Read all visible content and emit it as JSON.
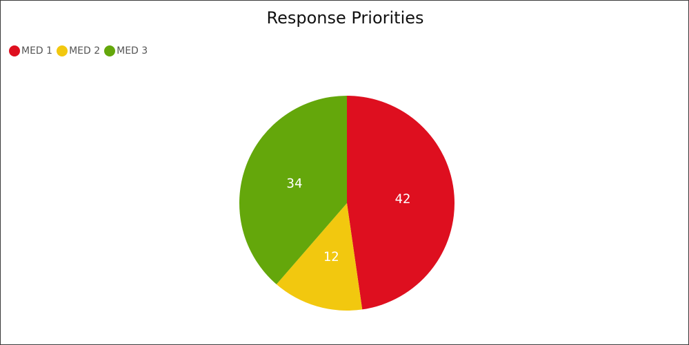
{
  "chart_data": {
    "type": "pie",
    "title": "Response Priorities",
    "legend_position": "top-left",
    "slices": [
      {
        "label": "MED 1",
        "value": 42,
        "color": "#de0f1f"
      },
      {
        "label": "MED 2",
        "value": 12,
        "color": "#f2c80f"
      },
      {
        "label": "MED 3",
        "value": 34,
        "color": "#64a70b"
      }
    ]
  }
}
